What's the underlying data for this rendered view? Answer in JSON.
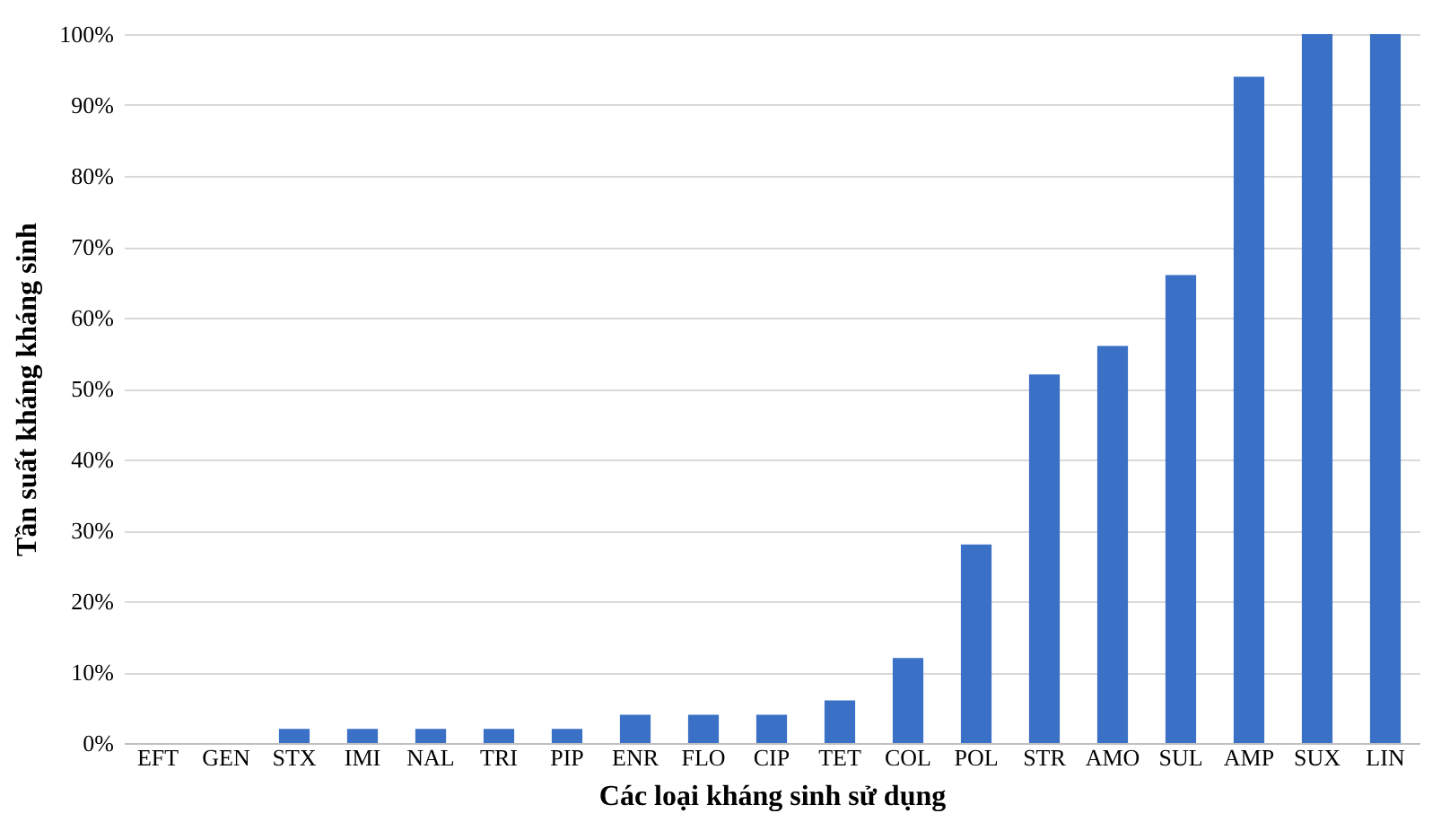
{
  "chart_data": {
    "type": "bar",
    "xlabel": "Các loại kháng sinh sử dụng",
    "ylabel": "Tần suất kháng kháng sinh",
    "categories": [
      "EFT",
      "GEN",
      "STX",
      "IMI",
      "NAL",
      "TRI",
      "PIP",
      "ENR",
      "FLO",
      "CIP",
      "TET",
      "COL",
      "POL",
      "STR",
      "AMO",
      "SUL",
      "AMP",
      "SUX",
      "LIN"
    ],
    "values": [
      0,
      0,
      2,
      2,
      2,
      2,
      2,
      4,
      4,
      4,
      6,
      12,
      28,
      52,
      56,
      66,
      94,
      100,
      100
    ],
    "color": "#3a70c6",
    "ylim": [
      0,
      100
    ],
    "yticks": [
      {
        "value": 0,
        "label": "0%"
      },
      {
        "value": 10,
        "label": "10%"
      },
      {
        "value": 20,
        "label": "20%"
      },
      {
        "value": 30,
        "label": "30%"
      },
      {
        "value": 40,
        "label": "40%"
      },
      {
        "value": 50,
        "label": "50%"
      },
      {
        "value": 60,
        "label": "60%"
      },
      {
        "value": 70,
        "label": "70%"
      },
      {
        "value": 80,
        "label": "80%"
      },
      {
        "value": 90,
        "label": "90%"
      },
      {
        "value": 100,
        "label": "100%"
      }
    ],
    "grid": "y"
  }
}
